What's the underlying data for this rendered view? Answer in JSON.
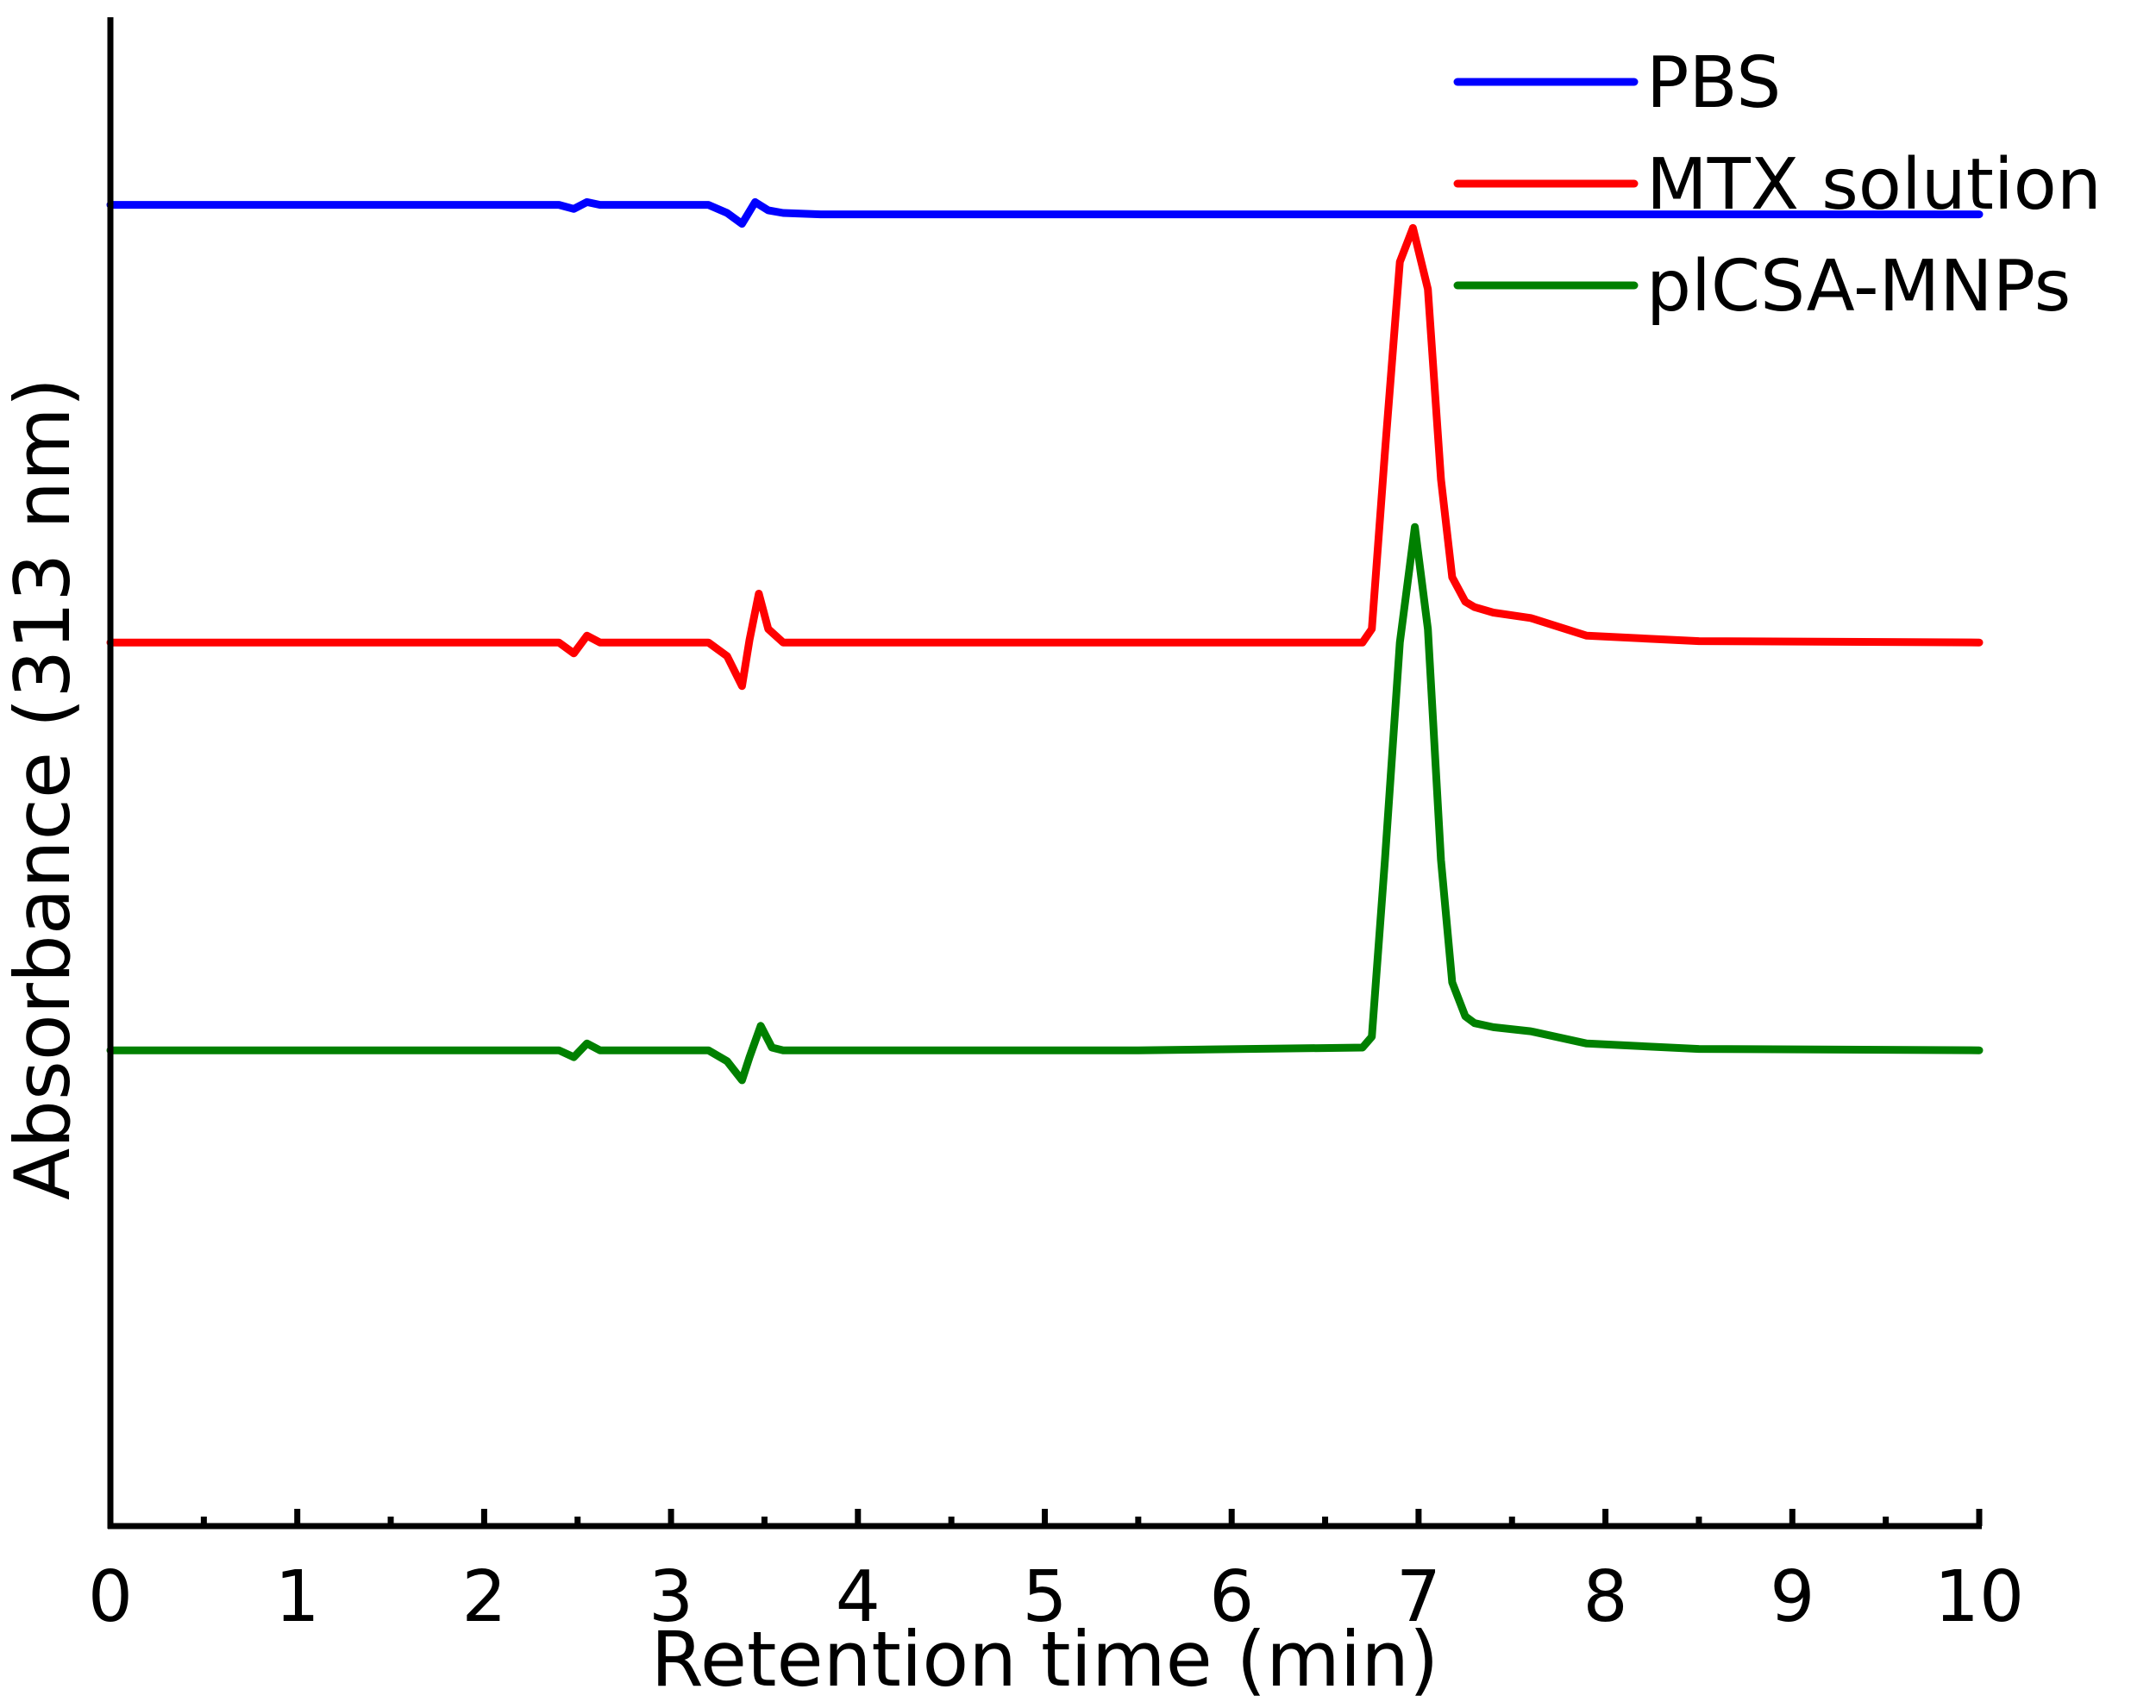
{
  "chart_data": {
    "type": "line",
    "xlabel": "Retention time (min)",
    "ylabel": "Absorbance (313 nm)",
    "xlim": [
      0,
      10
    ],
    "x_ticks": [
      0,
      1,
      2,
      3,
      4,
      5,
      6,
      7,
      8,
      9,
      10
    ],
    "y_ticks_shown": false,
    "grid": false,
    "legend_position": "top-right",
    "series": [
      {
        "name": "PBS",
        "color": "#0000ff",
        "x": [
          0,
          2.4,
          2.48,
          2.55,
          2.62,
          3.2,
          3.3,
          3.38,
          3.45,
          3.52,
          3.6,
          3.8,
          10
        ],
        "y": [
          9.72,
          9.72,
          9.69,
          9.74,
          9.72,
          9.72,
          9.66,
          9.58,
          9.74,
          9.68,
          9.66,
          9.65,
          9.65
        ]
      },
      {
        "name": "MTX solution",
        "color": "#ff0000",
        "x": [
          0,
          2.4,
          2.48,
          2.55,
          2.62,
          3.2,
          3.3,
          3.38,
          3.42,
          3.47,
          3.52,
          3.6,
          5.5,
          6.7,
          6.75,
          6.82,
          6.9,
          6.97,
          7.05,
          7.12,
          7.18,
          7.25,
          7.3,
          7.4,
          7.6,
          7.9,
          8.5,
          10
        ],
        "y": [
          6.5,
          6.5,
          6.42,
          6.55,
          6.5,
          6.5,
          6.4,
          6.18,
          6.52,
          6.86,
          6.6,
          6.5,
          6.5,
          6.5,
          6.6,
          7.9,
          9.3,
          9.55,
          9.1,
          7.7,
          6.98,
          6.8,
          6.76,
          6.72,
          6.68,
          6.55,
          6.51,
          6.5
        ]
      },
      {
        "name": "plCSA-MNPs",
        "color": "#008000",
        "x": [
          0,
          2.4,
          2.48,
          2.55,
          2.62,
          3.2,
          3.3,
          3.38,
          3.42,
          3.48,
          3.54,
          3.6,
          5.5,
          6.7,
          6.75,
          6.82,
          6.9,
          6.98,
          7.05,
          7.12,
          7.18,
          7.25,
          7.3,
          7.4,
          7.6,
          7.9,
          8.5,
          10
        ],
        "y": [
          3.5,
          3.5,
          3.45,
          3.55,
          3.5,
          3.5,
          3.42,
          3.28,
          3.45,
          3.68,
          3.52,
          3.5,
          3.5,
          3.52,
          3.6,
          4.9,
          6.5,
          7.35,
          6.6,
          4.9,
          4.0,
          3.75,
          3.7,
          3.67,
          3.64,
          3.55,
          3.51,
          3.5
        ]
      }
    ]
  }
}
